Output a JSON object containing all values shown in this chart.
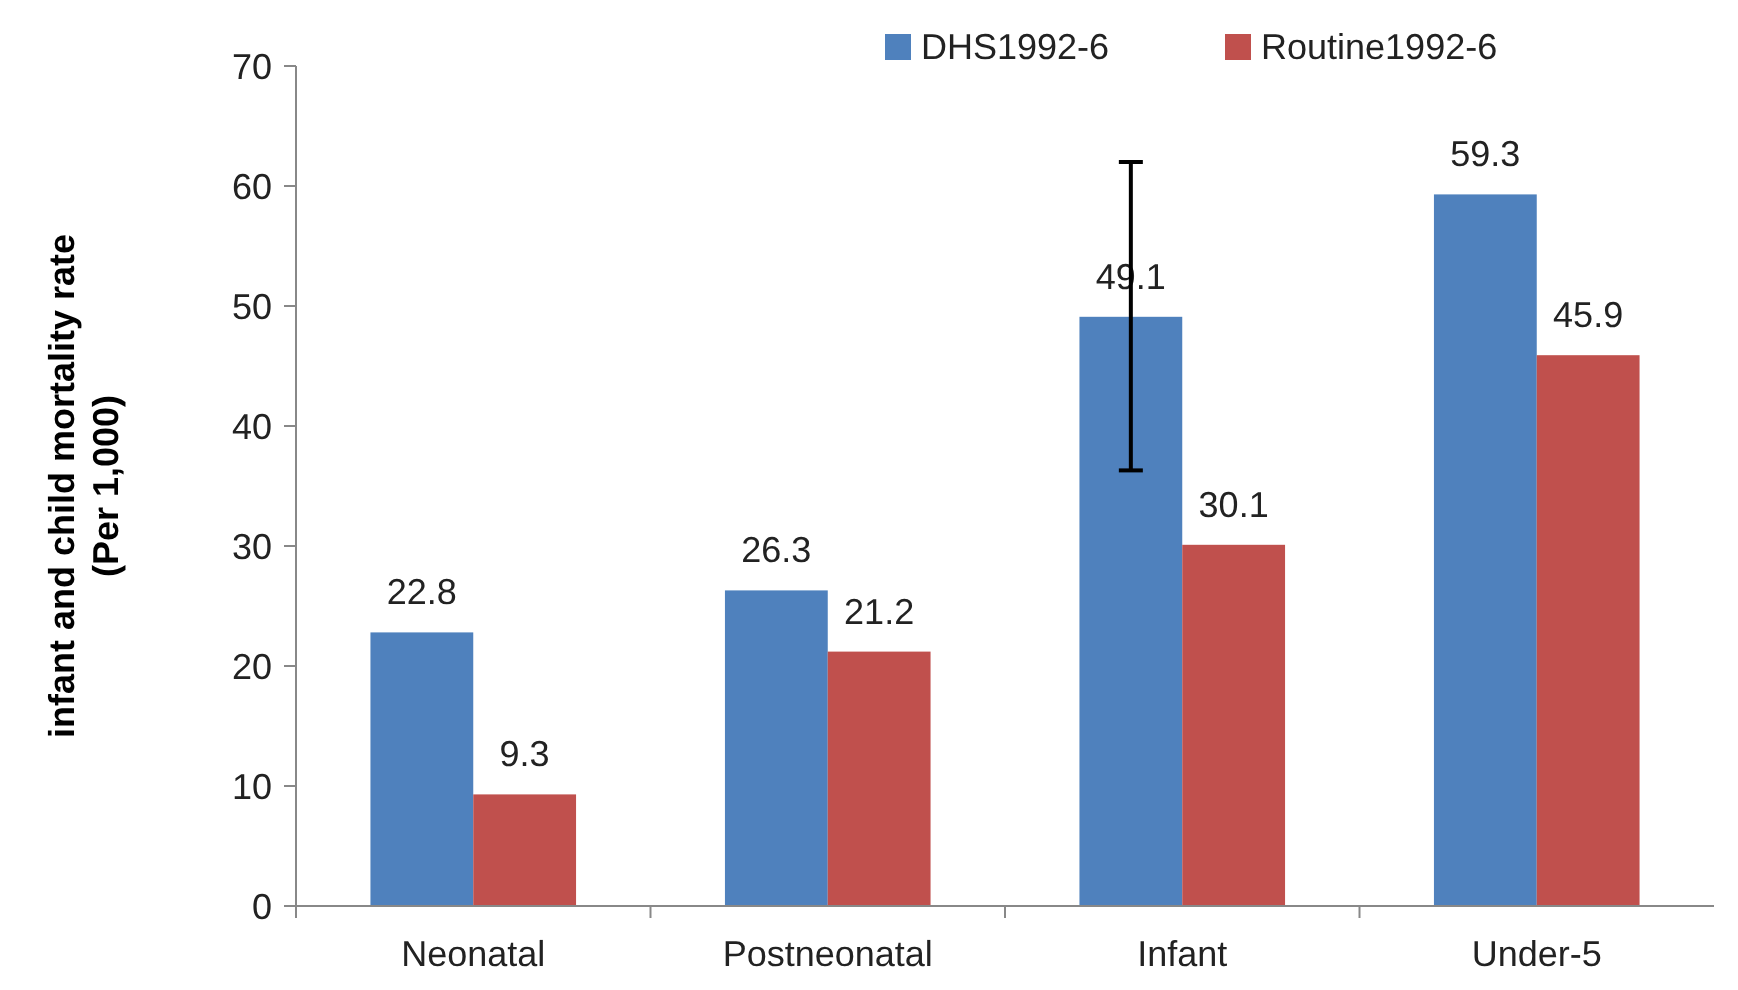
{
  "chart_data": {
    "type": "bar",
    "ylabel": "infant and child mortality rate\n(Per 1,000)",
    "categories": [
      "Neonatal",
      "Postneonatal",
      "Infant",
      "Under-5"
    ],
    "series": [
      {
        "name": "DHS1992-6",
        "color": "#4f81bd",
        "values": [
          22.8,
          26.3,
          49.1,
          59.3
        ],
        "errors": [
          null,
          null,
          [
            36.3,
            62
          ],
          null
        ]
      },
      {
        "name": "Routine1992-6",
        "color": "#c0504d",
        "values": [
          9.3,
          21.2,
          30.1,
          45.9
        ]
      }
    ],
    "ylim": [
      0,
      70
    ],
    "yticks": [
      0,
      10,
      20,
      30,
      40,
      50,
      60,
      70
    ],
    "data_labels": true,
    "legend": "top",
    "grid": false
  }
}
